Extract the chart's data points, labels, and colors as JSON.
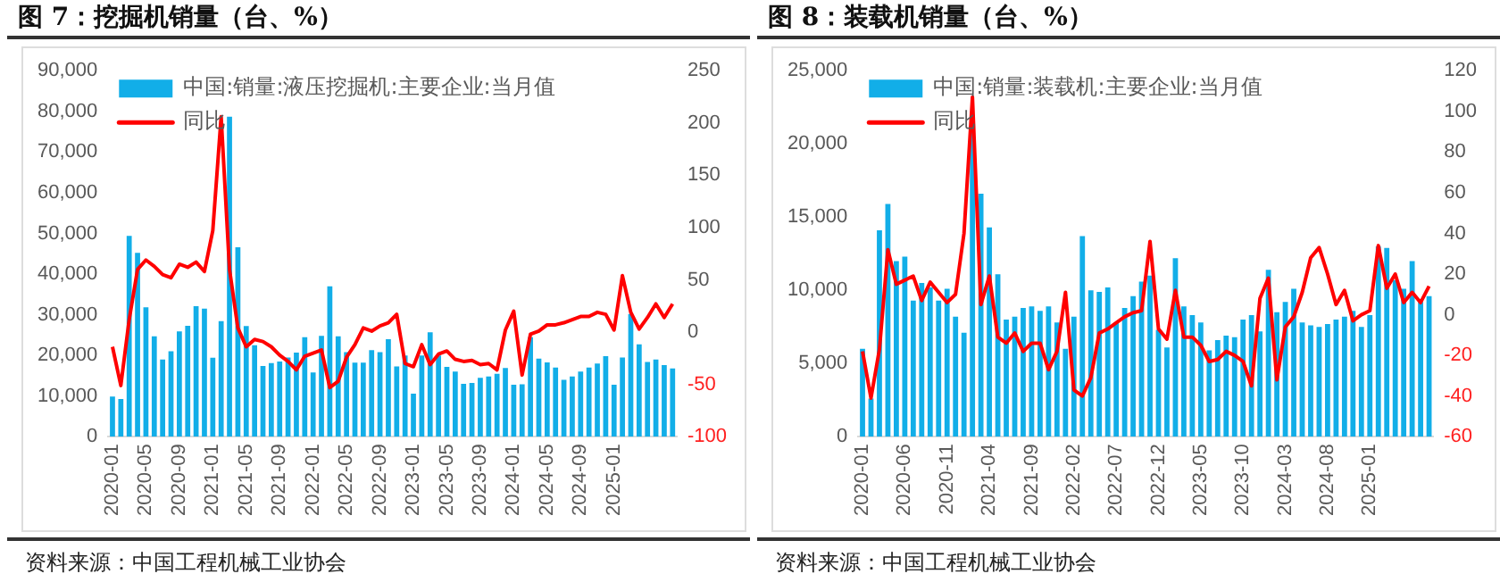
{
  "chart_data": [
    {
      "type": "bar",
      "title": "图 7：挖掘机销量（台、%）",
      "categories": [
        "2020-01",
        null,
        null,
        null,
        "2020-05",
        null,
        null,
        null,
        "2020-09",
        null,
        null,
        null,
        "2021-01",
        null,
        null,
        null,
        "2021-05",
        null,
        null,
        null,
        "2021-09",
        null,
        null,
        null,
        "2022-01",
        null,
        null,
        null,
        "2022-05",
        null,
        null,
        null,
        "2022-09",
        null,
        null,
        null,
        "2023-01",
        null,
        null,
        null,
        "2023-05",
        null,
        null,
        null,
        "2023-09",
        null,
        null,
        null,
        "2024-01",
        null,
        null,
        null,
        "2024-05",
        null,
        null,
        null,
        "2024-09",
        null,
        null,
        null,
        "2025-01",
        null,
        null,
        null,
        null,
        null,
        null,
        null
      ],
      "series": [
        {
          "name": "中国:销量:液压挖掘机:主要企业:当月值",
          "type": "bar",
          "color": "#12aee8",
          "values": [
            9900,
            9300,
            49400,
            45200,
            31800,
            24700,
            19000,
            21000,
            25900,
            27300,
            32100,
            31500,
            19400,
            28400,
            78700,
            46600,
            27200,
            22500,
            17400,
            18100,
            18500,
            19500,
            20700,
            24500,
            15800,
            24800,
            37000,
            24700,
            20800,
            18200,
            18200,
            21300,
            20800,
            24000,
            17300,
            20000,
            10600,
            20000,
            25700,
            20000,
            17200,
            16000,
            13000,
            13200,
            14500,
            14800,
            15500,
            16900,
            12800,
            12900,
            24500,
            19200,
            18300,
            17000,
            14000,
            14800,
            16000,
            17000,
            18000,
            19800,
            12800,
            19500,
            30200,
            22700,
            18400,
            19000,
            17600,
            16800
          ]
        },
        {
          "name": "同比",
          "type": "line",
          "axis": "y2",
          "color": "#ff0000",
          "values": [
            -14,
            -51,
            12,
            60,
            69,
            63,
            55,
            52,
            65,
            62,
            67,
            58,
            97,
            206,
            60,
            4,
            -14,
            -7,
            -9,
            -14,
            -22,
            -28,
            -36,
            -23,
            -20,
            -17,
            -53,
            -47,
            -24,
            -12,
            4,
            1,
            6,
            9,
            17,
            -30,
            -33,
            -12,
            -31,
            -21,
            -18,
            -26,
            -28,
            -27,
            -31,
            -30,
            -36,
            2,
            20,
            -41,
            -2,
            1,
            7,
            7,
            9,
            12,
            15,
            15,
            19,
            17,
            2,
            54,
            19,
            3,
            14,
            27,
            14,
            27
          ]
        }
      ],
      "ylim": [
        0,
        90000
      ],
      "yticks": [
        {
          "value": 0,
          "label": "0"
        },
        {
          "value": 10000,
          "label": "10,000"
        },
        {
          "value": 20000,
          "label": "20,000"
        },
        {
          "value": 30000,
          "label": "30,000"
        },
        {
          "value": 40000,
          "label": "40,000"
        },
        {
          "value": 50000,
          "label": "50,000"
        },
        {
          "value": 60000,
          "label": "60,000"
        },
        {
          "value": 70000,
          "label": "70,000"
        },
        {
          "value": 80000,
          "label": "80,000"
        },
        {
          "value": 90000,
          "label": "90,000"
        }
      ],
      "y2lim": [
        -100,
        250
      ],
      "y2ticks": [
        -100,
        -50,
        0,
        50,
        100,
        150,
        200,
        250
      ],
      "legend": "top left",
      "annotations": [
        "资料来源：中国工程机械工业协会"
      ]
    },
    {
      "type": "bar",
      "title": "图 8：装载机销量（台、%）",
      "categories": [
        "2020-01",
        null,
        null,
        null,
        null,
        "2020-06",
        null,
        null,
        null,
        null,
        "2020-11",
        null,
        null,
        null,
        null,
        "2021-04",
        null,
        null,
        null,
        null,
        "2021-09",
        null,
        null,
        null,
        null,
        "2022-02",
        null,
        null,
        null,
        null,
        "2022-07",
        null,
        null,
        null,
        null,
        "2022-12",
        null,
        null,
        null,
        null,
        "2023-05",
        null,
        null,
        null,
        null,
        "2023-10",
        null,
        null,
        null,
        null,
        "2024-03",
        null,
        null,
        null,
        null,
        "2024-08",
        null,
        null,
        null,
        null,
        "2025-01",
        null,
        null,
        null,
        null,
        null,
        null,
        null
      ],
      "series": [
        {
          "name": "中国:销量:装载机:主要企业:当月值",
          "type": "bar",
          "color": "#12aee8",
          "values": [
            6000,
            2600,
            14100,
            15900,
            12000,
            12300,
            9300,
            10500,
            10200,
            9300,
            10100,
            8200,
            7100,
            21400,
            16600,
            14300,
            11100,
            8000,
            8200,
            8800,
            8900,
            8600,
            8900,
            7800,
            6000,
            8200,
            13700,
            10000,
            9900,
            10200,
            7800,
            8800,
            9600,
            10600,
            11000,
            7300,
            6100,
            12200,
            8900,
            8300,
            7800,
            5900,
            6600,
            6900,
            6800,
            8000,
            8300,
            7200,
            11400,
            8500,
            9200,
            10100,
            7800,
            7600,
            7500,
            7700,
            8000,
            8200,
            8600,
            7500,
            8300,
            13000,
            12900,
            10700,
            10100,
            12000,
            9200,
            9600
          ]
        },
        {
          "name": "同比",
          "type": "line",
          "axis": "y2",
          "color": "#ff0000",
          "values": [
            -18,
            -41,
            -17,
            32,
            15,
            17,
            19,
            7,
            16,
            11,
            6,
            10,
            40,
            107,
            5,
            19,
            -11,
            -14,
            -9,
            -18,
            -14,
            -14,
            -27,
            -18,
            11,
            -37,
            -40,
            -31,
            -9,
            -7,
            -4,
            -1,
            1,
            2,
            36,
            -7,
            -12,
            12,
            -11,
            -11,
            -15,
            -23,
            -22,
            -18,
            -20,
            -23,
            -35,
            8,
            18,
            -32,
            -6,
            -1,
            11,
            28,
            33,
            20,
            5,
            12,
            -3,
            0,
            2,
            34,
            13,
            20,
            6,
            11,
            6,
            14
          ]
        }
      ],
      "ylim": [
        0,
        25000
      ],
      "yticks": [
        {
          "value": 0,
          "label": "0"
        },
        {
          "value": 5000,
          "label": "5,000"
        },
        {
          "value": 10000,
          "label": "10,000"
        },
        {
          "value": 15000,
          "label": "15,000"
        },
        {
          "value": 20000,
          "label": "20,000"
        },
        {
          "value": 25000,
          "label": "25,000"
        }
      ],
      "y2lim": [
        -60,
        120
      ],
      "y2ticks": [
        -60,
        -40,
        -20,
        0,
        20,
        40,
        60,
        80,
        100,
        120
      ],
      "legend": "top left",
      "annotations": [
        "资料来源：中国工程机械工业协会"
      ]
    }
  ]
}
